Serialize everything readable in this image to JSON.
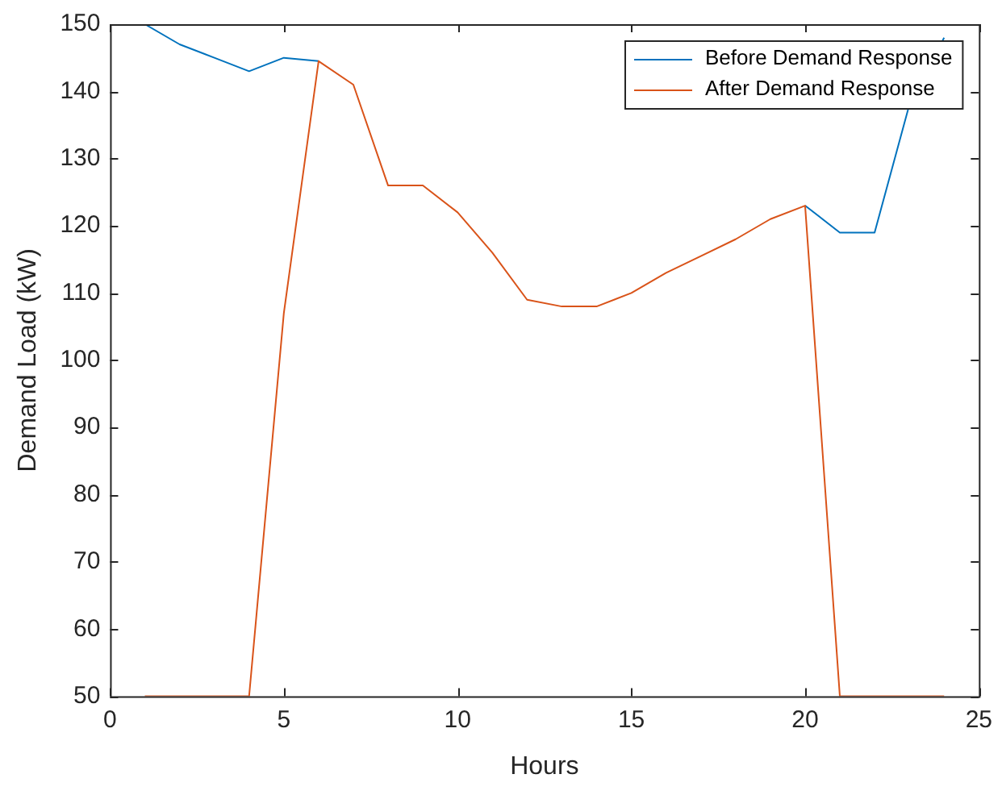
{
  "chart_data": {
    "type": "line",
    "xlabel": "Hours",
    "ylabel": "Demand Load (kW)",
    "x": [
      1,
      2,
      3,
      4,
      5,
      6,
      7,
      8,
      9,
      10,
      11,
      12,
      13,
      14,
      15,
      16,
      17,
      18,
      19,
      20,
      21,
      22,
      23,
      24
    ],
    "series": [
      {
        "name": "Before Demand Response",
        "color": "#0072bd",
        "values": [
          150,
          147,
          145,
          143,
          145,
          144.5,
          null,
          null,
          null,
          null,
          null,
          null,
          null,
          null,
          null,
          null,
          null,
          null,
          null,
          123,
          119,
          119,
          138,
          148
        ]
      },
      {
        "name": "After Demand Response",
        "color": "#d95319",
        "values": [
          50,
          50,
          50,
          50,
          107,
          144.5,
          141,
          126,
          126,
          122,
          116,
          109,
          108,
          108,
          110,
          113,
          115.5,
          118,
          121,
          123,
          50,
          50,
          50,
          50
        ]
      }
    ],
    "xlim": [
      0,
      25
    ],
    "xticks": [
      0,
      5,
      10,
      15,
      20,
      25
    ],
    "ylim": [
      50,
      150
    ],
    "yticks": [
      50,
      60,
      70,
      80,
      90,
      100,
      110,
      120,
      130,
      140,
      150
    ],
    "grid": false,
    "legend": "top right",
    "marker": "none",
    "line_style": "solid"
  }
}
